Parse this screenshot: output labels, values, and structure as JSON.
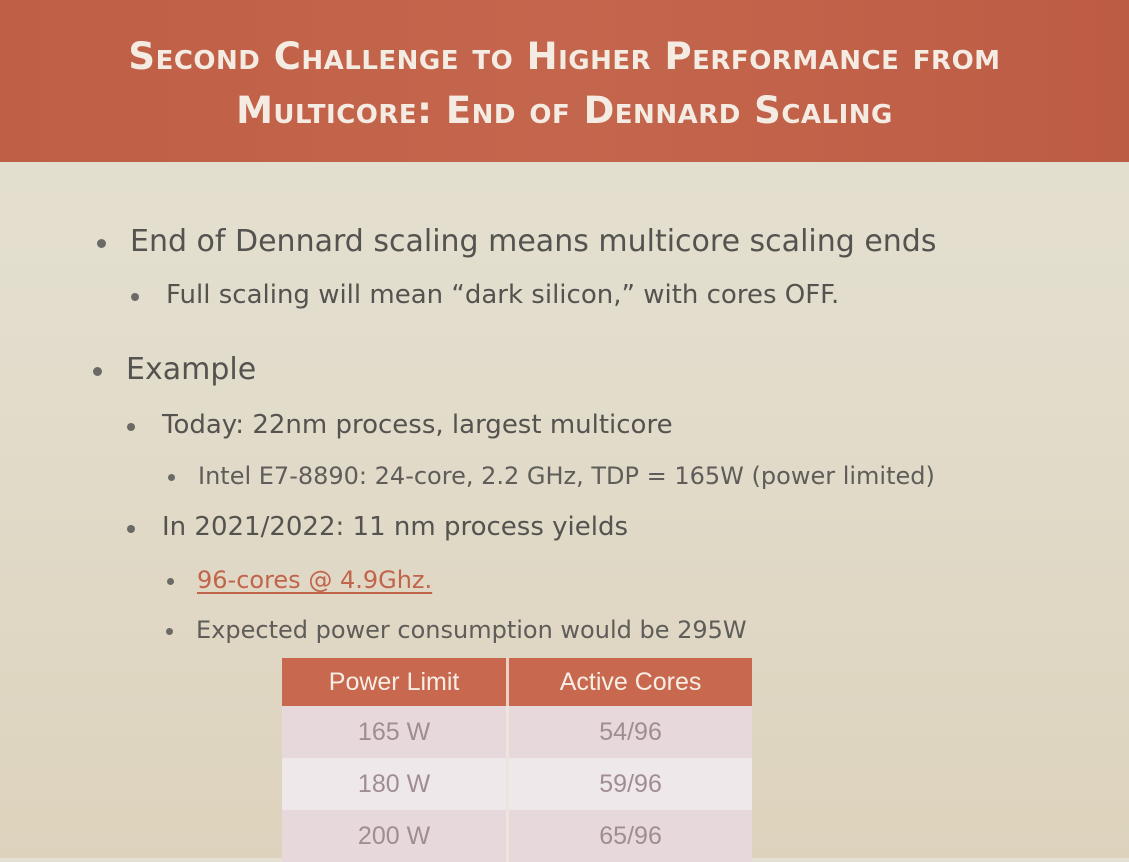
{
  "slide": {
    "title_line1": "Second Challenge to Higher Performance from",
    "title_line2": "Multicore: End of Dennard Scaling",
    "bullets": {
      "b1": "End of Dennard scaling means multicore scaling ends",
      "b1_1": "Full scaling will mean “dark silicon,” with cores OFF.",
      "b2": "Example",
      "b2_1": "Today: 22nm process, largest multicore",
      "b2_1_1": "Intel E7-8890: 24-core, 2.2 GHz, TDP = 165W (power limited)",
      "b2_2": "In 2021/2022: 11 nm process yields",
      "b2_2_1": "96-cores @ 4.9Ghz.",
      "b2_2_2": "Expected power consumption would be 295W"
    },
    "table": {
      "headers": [
        "Power Limit",
        "Active Cores"
      ],
      "rows": [
        [
          "165 W",
          "54/96"
        ],
        [
          "180 W",
          "59/96"
        ],
        [
          "200 W",
          "65/96"
        ]
      ]
    },
    "colors": {
      "title_bar": "#c4664d",
      "title_text": "#f4ece3",
      "link": "#c0644c",
      "table_header": "#c8694f"
    }
  }
}
